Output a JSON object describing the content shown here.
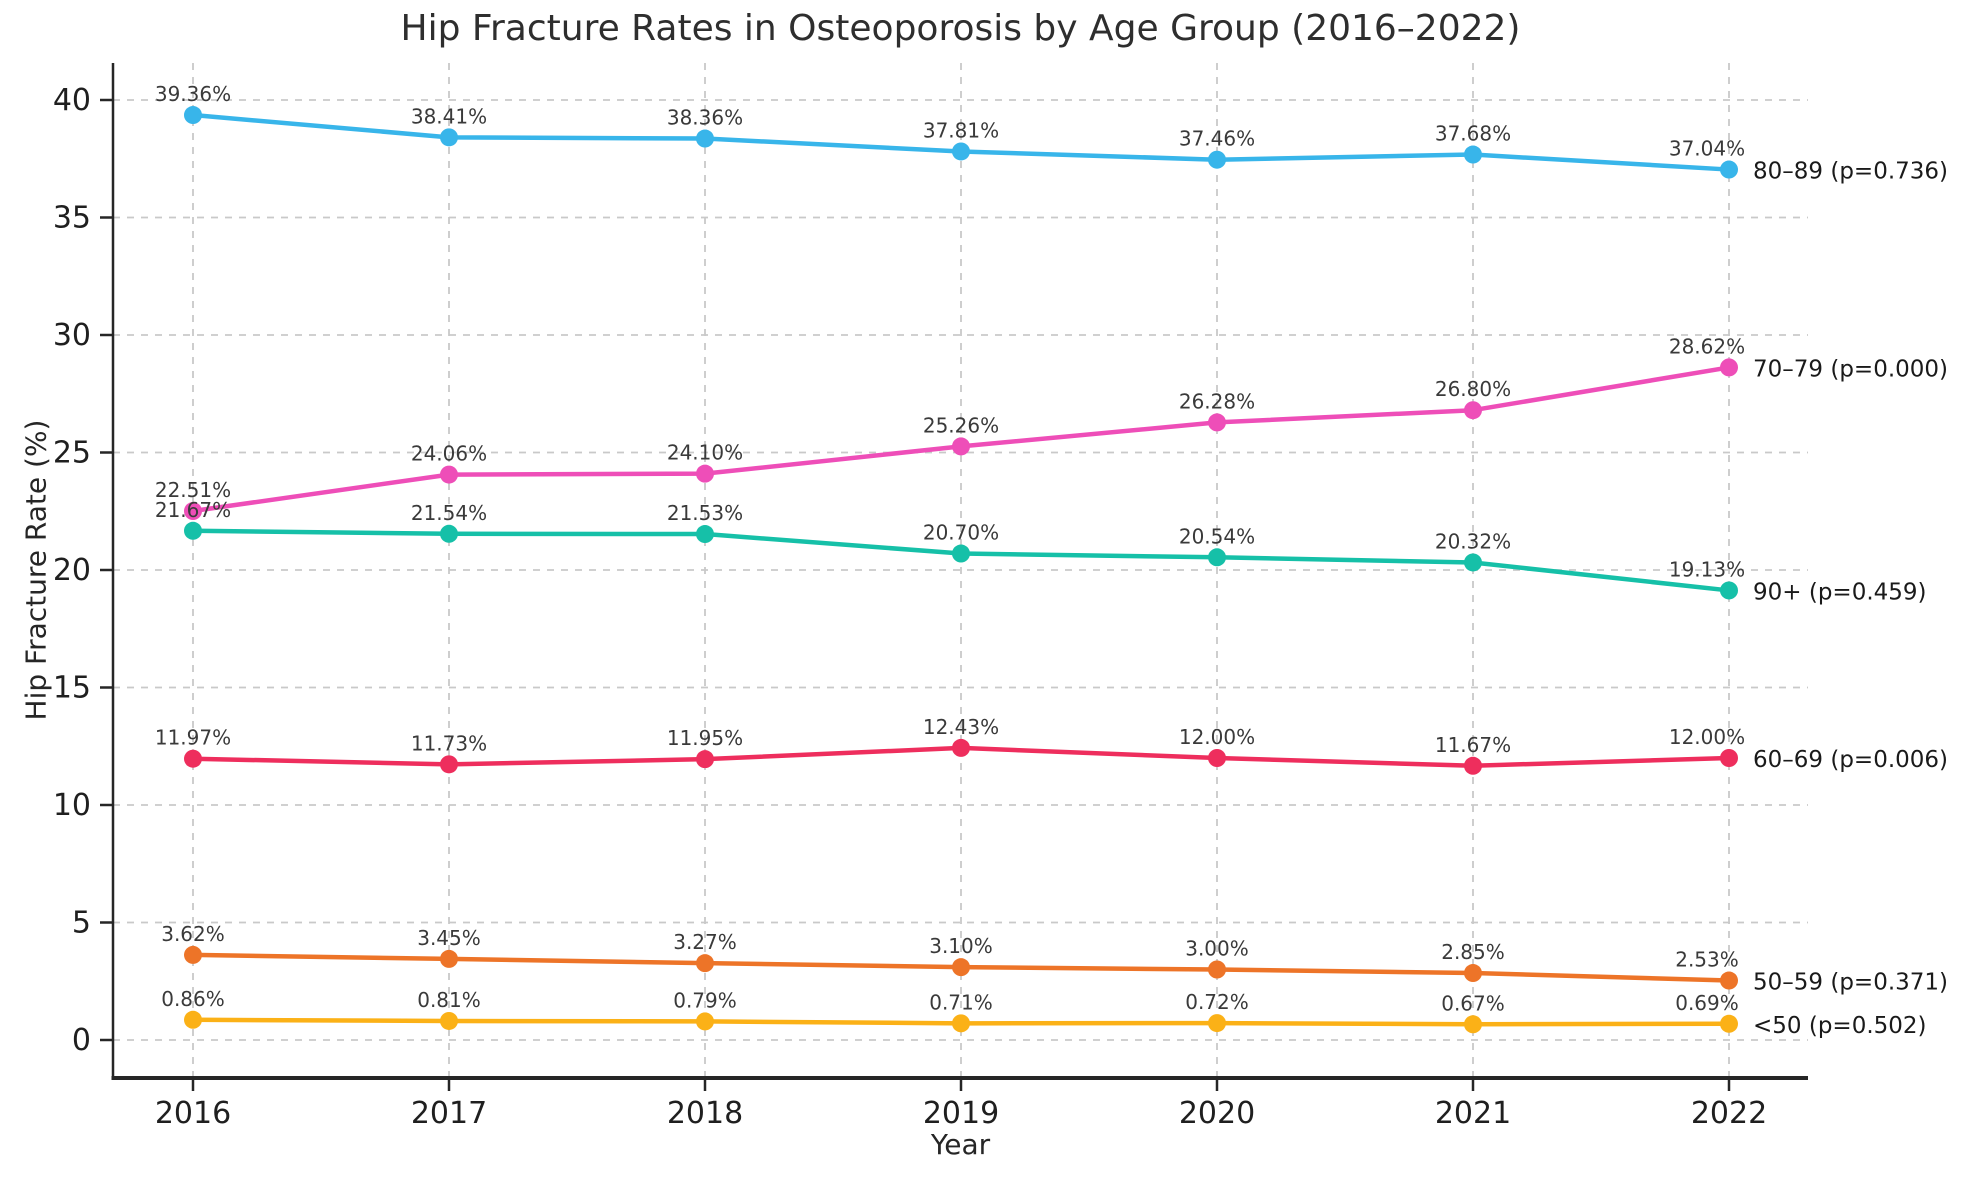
{
  "title": "Hip Fracture Rates in Osteoporosis by Age Group (2016–2022)",
  "chart_data": {
    "type": "line",
    "title": "Hip Fracture Rates in Osteoporosis by Age Group (2016–2022)",
    "xlabel": "Year",
    "ylabel": "Hip Fracture Rate (%)",
    "x": [
      2016,
      2017,
      2018,
      2019,
      2020,
      2021,
      2022
    ],
    "yticks": [
      0,
      5,
      10,
      15,
      20,
      25,
      30,
      35,
      40
    ],
    "ylim": [
      0,
      40
    ],
    "grid": true,
    "grid_style": "dashed",
    "legend_position": "right-of-last-point",
    "point_label_format": "{value}%",
    "series": [
      {
        "name": "80–89 (p=0.736)",
        "color": "#38b5ea",
        "values": [
          39.36,
          38.41,
          38.36,
          37.81,
          37.46,
          37.68,
          37.04
        ]
      },
      {
        "name": "70–79 (p=0.000)",
        "color": "#ee4eb8",
        "values": [
          22.51,
          24.06,
          24.1,
          25.26,
          26.28,
          26.8,
          28.62
        ]
      },
      {
        "name": "90+ (p=0.459)",
        "color": "#16c0a8",
        "values": [
          21.67,
          21.54,
          21.53,
          20.7,
          20.54,
          20.32,
          19.13
        ]
      },
      {
        "name": "60–69 (p=0.006)",
        "color": "#ee2e5d",
        "values": [
          11.97,
          11.73,
          11.95,
          12.43,
          12.0,
          11.67,
          12.0
        ]
      },
      {
        "name": "50–59 (p=0.371)",
        "color": "#ed7428",
        "values": [
          3.62,
          3.45,
          3.27,
          3.1,
          3.0,
          2.85,
          2.53
        ]
      },
      {
        "name": "<50 (p=0.502)",
        "color": "#fbb117",
        "values": [
          0.86,
          0.81,
          0.79,
          0.71,
          0.72,
          0.67,
          0.69
        ]
      }
    ],
    "colors": {
      "grid": "#c9c9c9",
      "spine": "#262626",
      "tick_label": "#1f1f1f",
      "point_label": "#3a3a3a",
      "series_label": "#1a1a1a",
      "title": "#2e2e2e"
    }
  }
}
